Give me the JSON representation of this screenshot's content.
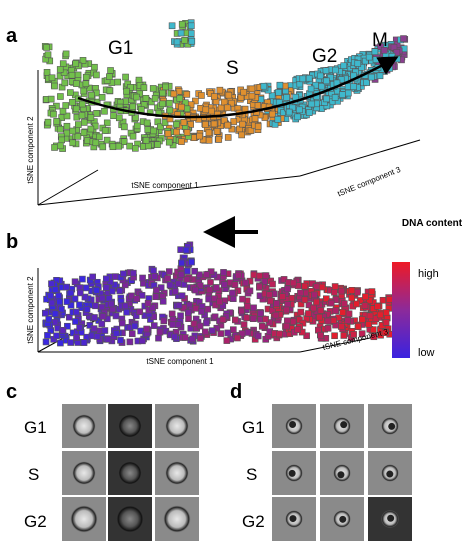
{
  "panels": [
    {
      "label": "a",
      "axis_labels": [
        "tSNE component 2",
        "tSNE component 1",
        "tSNE component 3"
      ],
      "phases": [
        "G1",
        "S",
        "G2",
        "M"
      ]
    },
    {
      "label": "b",
      "axis_labels": [
        "tSNE component 2",
        "tSNE component 1",
        "tSNE component 3"
      ],
      "colorbar": {
        "title": "DNA content",
        "high": "high",
        "low": "low"
      }
    },
    {
      "label": "c",
      "rows": [
        "G1",
        "S",
        "G2"
      ]
    },
    {
      "label": "d",
      "rows": [
        "G1",
        "S",
        "G2"
      ]
    }
  ]
}
